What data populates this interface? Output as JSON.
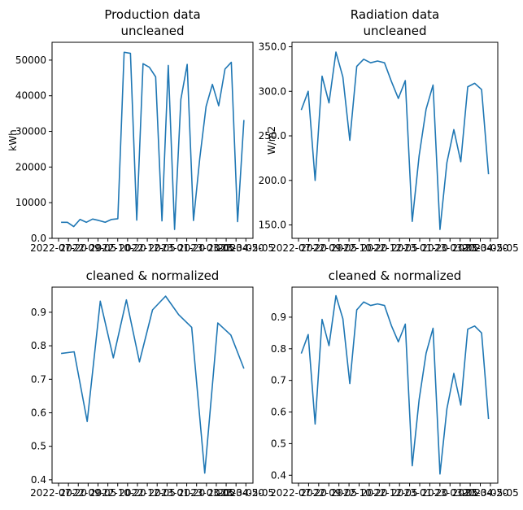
{
  "chart_data": [
    {
      "type": "line",
      "title": [
        "Production data",
        "uncleaned"
      ],
      "xlabel": "",
      "ylabel": "kWh",
      "ylim": [
        0,
        55000
      ],
      "yticks": [
        0,
        10000,
        20000,
        30000,
        40000,
        50000
      ],
      "xticks": [
        "2022-07",
        "2022-08",
        "2022-09",
        "2022-10",
        "2022-11",
        "2022-12",
        "2023-01",
        "2023-02",
        "2023-03",
        "2023-04",
        "2023-05"
      ],
      "xtick_text": [
        "2022-07-20",
        "2022-08-05",
        "2022-08-20",
        "2022-09-05",
        "2022-09-20",
        "2022-10-05",
        "2022-10-20",
        "2022-11-05",
        "2022-11-20",
        "2022-12-05",
        "2022-12-20",
        "2023-01-05",
        "2023-01-20",
        "2023-02-05",
        "2023-02-20",
        "2023-03-05",
        "2023-03-20",
        "2023-04-05",
        "2023-04-20",
        "2023-05-05"
      ],
      "color": "#1f77b4",
      "series": [
        {
          "values": [
            4500,
            4500,
            3300,
            5300,
            4500,
            5400,
            5000,
            4500,
            5300,
            5500,
            52200,
            51900,
            5100,
            49000,
            48000,
            45300,
            4900,
            48500,
            2500,
            39000,
            48800,
            5000,
            22500,
            37000,
            43200,
            37200,
            47500,
            49400,
            4700,
            33200
          ]
        }
      ]
    },
    {
      "type": "line",
      "title": [
        "Radiation data",
        "uncleaned"
      ],
      "xlabel": "",
      "ylabel": "W/m2",
      "ylim": [
        135,
        355
      ],
      "yticks": [
        150,
        200,
        250,
        300,
        350
      ],
      "color": "#1f77b4",
      "series": [
        {
          "values": [
            279,
            300,
            200,
            317,
            287,
            344,
            316,
            245,
            328,
            336,
            332,
            334,
            332,
            311,
            292,
            312,
            154,
            228,
            280,
            307,
            145,
            220,
            257,
            221,
            305,
            309,
            302,
            207
          ]
        }
      ]
    },
    {
      "type": "line",
      "title": [
        "cleaned & normalized"
      ],
      "xlabel": "",
      "ylabel": "",
      "ylim": [
        0.39,
        0.975
      ],
      "yticks": [
        0.4,
        0.5,
        0.6,
        0.7,
        0.8,
        0.9
      ],
      "color": "#1f77b4",
      "series": [
        {
          "values": [
            0.777,
            0.782,
            0.574,
            0.933,
            0.764,
            0.937,
            0.752,
            0.907,
            0.948,
            0.893,
            0.855,
            0.42,
            0.868,
            0.832,
            0.732
          ]
        }
      ]
    },
    {
      "type": "line",
      "title": [
        "cleaned & normalized"
      ],
      "xlabel": "",
      "ylabel": "",
      "ylim": [
        0.375,
        0.995
      ],
      "yticks": [
        0.4,
        0.5,
        0.6,
        0.7,
        0.8,
        0.9
      ],
      "color": "#1f77b4",
      "series": [
        {
          "values": [
            0.785,
            0.845,
            0.562,
            0.893,
            0.81,
            0.968,
            0.895,
            0.69,
            0.923,
            0.948,
            0.937,
            0.942,
            0.937,
            0.873,
            0.822,
            0.878,
            0.43,
            0.64,
            0.786,
            0.865,
            0.404,
            0.61,
            0.722,
            0.622,
            0.862,
            0.872,
            0.85,
            0.578
          ]
        }
      ]
    }
  ]
}
